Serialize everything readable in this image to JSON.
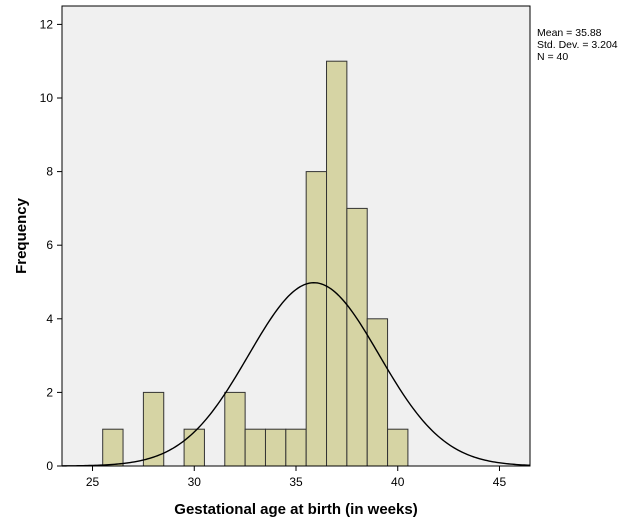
{
  "chart_data": {
    "type": "bar",
    "subtype": "histogram",
    "xlabel": "Gestational age at birth  (in weeks)",
    "ylabel": "Frequency",
    "xlim": [
      23.5,
      46.5
    ],
    "ylim": [
      0,
      12.5
    ],
    "xticks": [
      25,
      30,
      35,
      40,
      45
    ],
    "yticks": [
      0,
      2,
      4,
      6,
      8,
      10,
      12
    ],
    "bin_width": 1,
    "bins": [
      {
        "x": 26,
        "count": 1
      },
      {
        "x": 27,
        "count": 0
      },
      {
        "x": 28,
        "count": 2
      },
      {
        "x": 29,
        "count": 0
      },
      {
        "x": 30,
        "count": 1
      },
      {
        "x": 31,
        "count": 0
      },
      {
        "x": 32,
        "count": 2
      },
      {
        "x": 33,
        "count": 1
      },
      {
        "x": 34,
        "count": 1
      },
      {
        "x": 35,
        "count": 1
      },
      {
        "x": 36,
        "count": 8
      },
      {
        "x": 37,
        "count": 11
      },
      {
        "x": 38,
        "count": 7
      },
      {
        "x": 39,
        "count": 4
      },
      {
        "x": 40,
        "count": 1
      }
    ],
    "normal_curve": {
      "mean": 35.88,
      "sd": 3.204,
      "n": 40
    },
    "stats_lines": [
      "Mean = 35.88",
      "Std. Dev. = 3.204",
      "N = 40"
    ],
    "colors": {
      "plot_background": "#f0f0f0",
      "bar_fill": "#d6d4a4",
      "bar_stroke": "#333333",
      "curve": "#000000"
    }
  }
}
